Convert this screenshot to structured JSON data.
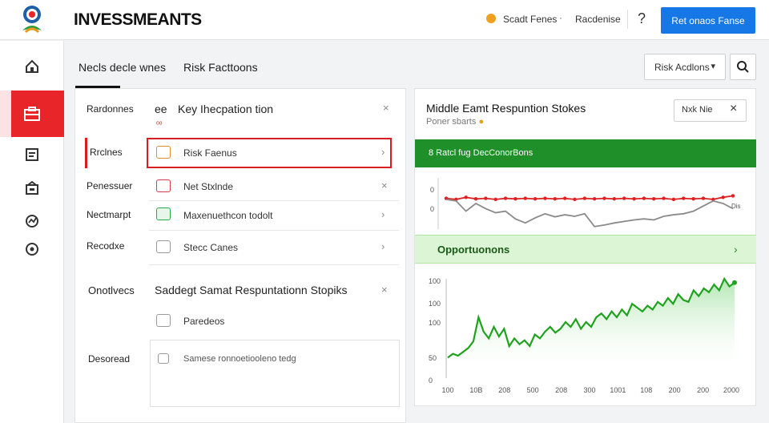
{
  "header": {
    "title": "INVESSMEANTS",
    "link1": "Scadt Fenes",
    "dot": "·",
    "link2": "Racdenise",
    "help": "?",
    "primary_button": "Ret onaos Fanse"
  },
  "tabs": [
    {
      "label": "Necls decle wnes"
    },
    {
      "label": "Risk Facttoons"
    }
  ],
  "toolbar": {
    "risk_dropdown": "Risk Acdlons",
    "dropdown_chevron": "▾"
  },
  "left_panel": {
    "section1_label": "Rardonnes",
    "section1_prefix": "ee",
    "section1_title": "Key Ihecpation tion",
    "section1_note": "ᵒᵒ",
    "rows": [
      {
        "label": "Rrclnes",
        "text": "Risk Faenus",
        "arrow": "›"
      },
      {
        "label": "Penessuer",
        "text": "Net Stxlnde",
        "arrow": "×"
      },
      {
        "label": "Nectmarpt",
        "text": "Maxenuethcon todolt",
        "arrow": "›"
      },
      {
        "label": "Recodxe",
        "text": "Stecc Canes",
        "arrow": "›"
      }
    ],
    "section2_label": "Onotlvecs",
    "section2_title": "Saddegt Samat Respuntationn Stopiks",
    "section2_arrow": "×",
    "section2_row": "Paredeos",
    "section3_label": "Desoread",
    "section3_text": "Samese ronnoetiooleno tedg"
  },
  "right_panel": {
    "title": "Middle Eamt Respuntion Stokes",
    "subtitle": "Poner sbarts",
    "close_box_label": "Nxk Nie",
    "close_icon": "×",
    "green_bar_text": "8  Ratcl fug  DecConorBons",
    "opportunities": "Opportuonons",
    "opp_arrow": "›"
  },
  "colors": {
    "accent_red": "#e8262a",
    "primary_blue": "#1677e6",
    "chart_green": "#1fa31f",
    "bar_green": "#1f8f2a",
    "line_red": "#e02020",
    "line_gray": "#8a8a8a"
  },
  "chart_data": [
    {
      "type": "line",
      "title": "",
      "y_tick_labels": [
        "0",
        "0"
      ],
      "right_label": "Dis",
      "series": [
        {
          "values": [
            0.6,
            0.58,
            0.62,
            0.59,
            0.6,
            0.58,
            0.6,
            0.59,
            0.6,
            0.59,
            0.6,
            0.59,
            0.6,
            0.58,
            0.6,
            0.59,
            0.6,
            0.59,
            0.6,
            0.59,
            0.6,
            0.59,
            0.6,
            0.58,
            0.6,
            0.59,
            0.6,
            0.58,
            0.62,
            0.65
          ]
        },
        {
          "values": [
            0.58,
            0.55,
            0.35,
            0.5,
            0.4,
            0.32,
            0.35,
            0.2,
            0.12,
            0.22,
            0.3,
            0.24,
            0.28,
            0.25,
            0.3,
            0.05,
            0.08,
            0.12,
            0.15,
            0.18,
            0.2,
            0.18,
            0.25,
            0.28,
            0.3,
            0.35,
            0.45,
            0.55,
            0.5,
            0.4
          ]
        }
      ]
    },
    {
      "type": "area",
      "title": "",
      "y_tick_labels": [
        "100",
        "100",
        "100",
        "50",
        "0"
      ],
      "x_tick_labels": [
        "100",
        "10B",
        "208",
        "500",
        "208",
        "300",
        "1001",
        "108",
        "200",
        "200",
        "2000"
      ],
      "values": [
        18,
        22,
        20,
        24,
        28,
        35,
        60,
        45,
        38,
        50,
        40,
        48,
        30,
        38,
        32,
        36,
        30,
        42,
        38,
        45,
        50,
        44,
        48,
        55,
        50,
        58,
        48,
        55,
        50,
        60,
        64,
        58,
        66,
        60,
        68,
        62,
        74,
        70,
        66,
        72,
        68,
        76,
        72,
        80,
        74,
        84,
        78,
        76,
        88,
        82,
        90,
        86,
        94,
        88,
        100,
        92,
        96
      ]
    }
  ]
}
